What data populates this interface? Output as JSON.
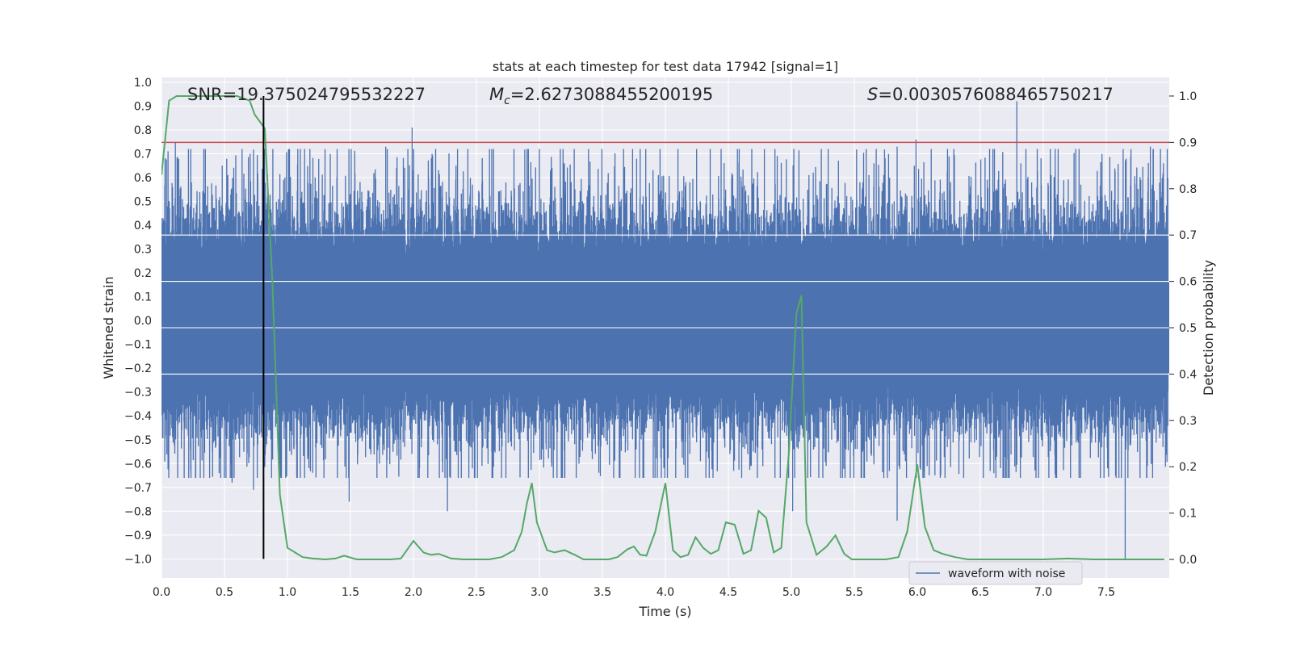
{
  "chart_data": {
    "type": "line",
    "title": "stats at each timestep for test data 17942 [signal=1]",
    "xlabel": "Time (s)",
    "ylabel_left": "Whitened strain",
    "ylabel_right": "Detection probability",
    "xlim": [
      0.0,
      8.0
    ],
    "ylim_left": [
      -1.08,
      1.02
    ],
    "ylim_right": [
      -0.04,
      1.04
    ],
    "x_ticks": [
      "0.0",
      "0.5",
      "1.0",
      "1.5",
      "2.0",
      "2.5",
      "3.0",
      "3.5",
      "4.0",
      "4.5",
      "5.0",
      "5.5",
      "6.0",
      "6.5",
      "7.0",
      "7.5"
    ],
    "y_ticks_left": [
      "1.0",
      "0.9",
      "0.8",
      "0.7",
      "0.6",
      "0.5",
      "0.4",
      "0.3",
      "0.2",
      "0.1",
      "0.0",
      "-0.1",
      "-0.2",
      "-0.3",
      "-0.4",
      "-0.5",
      "-0.6",
      "-0.7",
      "-0.8",
      "-0.9",
      "-1.0"
    ],
    "y_ticks_right": [
      "1.0",
      "0.9",
      "0.8",
      "0.7",
      "0.6",
      "0.5",
      "0.4",
      "0.3",
      "0.2",
      "0.1",
      "0.0"
    ],
    "annotations": {
      "snr": "SNR=19.375024795532227",
      "mc_symbol": "M",
      "mc_sub": "c",
      "mc_value": "=2.6273088455200195",
      "s_symbol": "S",
      "s_value": "=0.0030576088465750217"
    },
    "legend": {
      "label": "waveform with noise",
      "placement": "lower-right"
    },
    "threshold_right": 0.9,
    "marker_time": 0.81,
    "waveform": {
      "name": "waveform with noise",
      "note_range": [
        -1.0,
        0.92
      ],
      "peaks": [
        {
          "x": 0.11,
          "y": 0.75
        },
        {
          "x": 1.99,
          "y": 0.81
        },
        {
          "x": 1.78,
          "y": 0.73
        },
        {
          "x": 5.84,
          "y": 0.73
        },
        {
          "x": 5.99,
          "y": 0.76
        },
        {
          "x": 6.79,
          "y": 0.92
        },
        {
          "x": 7.85,
          "y": 0.73
        }
      ],
      "troughs": [
        {
          "x": 0.56,
          "y": -0.68
        },
        {
          "x": 0.73,
          "y": -0.71
        },
        {
          "x": 1.49,
          "y": -0.76
        },
        {
          "x": 2.27,
          "y": -0.8
        },
        {
          "x": 5.01,
          "y": -0.8
        },
        {
          "x": 5.84,
          "y": -0.84
        },
        {
          "x": 7.65,
          "y": -1.0
        }
      ]
    },
    "detection_probability": {
      "x": [
        0.0,
        0.06,
        0.12,
        0.2,
        0.3,
        0.4,
        0.5,
        0.6,
        0.7,
        0.74,
        0.82,
        0.88,
        0.94,
        1.0,
        1.06,
        1.12,
        1.2,
        1.3,
        1.38,
        1.45,
        1.55,
        1.65,
        1.75,
        1.82,
        1.9,
        2.0,
        2.08,
        2.14,
        2.2,
        2.3,
        2.4,
        2.5,
        2.6,
        2.7,
        2.8,
        2.86,
        2.9,
        2.94,
        2.98,
        3.06,
        3.12,
        3.2,
        3.28,
        3.35,
        3.45,
        3.55,
        3.62,
        3.7,
        3.75,
        3.8,
        3.85,
        3.92,
        4.0,
        4.06,
        4.12,
        4.18,
        4.24,
        4.3,
        4.36,
        4.42,
        4.48,
        4.55,
        4.62,
        4.68,
        4.74,
        4.8,
        4.86,
        4.92,
        4.98,
        5.04,
        5.08,
        5.12,
        5.2,
        5.28,
        5.35,
        5.42,
        5.48,
        5.55,
        5.65,
        5.75,
        5.85,
        5.92,
        6.0,
        6.06,
        6.13,
        6.2,
        6.3,
        6.4,
        6.6,
        6.8,
        7.0,
        7.2,
        7.4,
        7.6,
        7.8,
        7.96
      ],
      "y": [
        0.83,
        0.99,
        1.0,
        1.0,
        1.0,
        1.0,
        1.0,
        1.0,
        0.99,
        0.96,
        0.93,
        0.6,
        0.14,
        0.025,
        0.015,
        0.005,
        0.002,
        0.0,
        0.002,
        0.008,
        0.0,
        0.0,
        0.0,
        0.0,
        0.002,
        0.04,
        0.015,
        0.01,
        0.012,
        0.002,
        0.0,
        0.0,
        0.0,
        0.005,
        0.02,
        0.06,
        0.12,
        0.165,
        0.08,
        0.02,
        0.015,
        0.02,
        0.01,
        0.0,
        0.0,
        0.0,
        0.005,
        0.022,
        0.028,
        0.01,
        0.008,
        0.06,
        0.165,
        0.02,
        0.005,
        0.01,
        0.048,
        0.025,
        0.012,
        0.02,
        0.08,
        0.075,
        0.012,
        0.02,
        0.105,
        0.09,
        0.015,
        0.025,
        0.23,
        0.53,
        0.57,
        0.08,
        0.01,
        0.028,
        0.052,
        0.012,
        0.0,
        0.0,
        0.0,
        0.0,
        0.005,
        0.06,
        0.205,
        0.07,
        0.02,
        0.012,
        0.005,
        0.0,
        0.0,
        0.0,
        0.0,
        0.002,
        0.0,
        0.0,
        0.0,
        0.0
      ]
    },
    "colors": {
      "waveform": "#4c72b0",
      "probability": "#55a868",
      "threshold": "#c44e52",
      "marker": "#000000",
      "axes_bg": "#eaeaf2",
      "grid": "#ffffff"
    },
    "grid": true
  }
}
